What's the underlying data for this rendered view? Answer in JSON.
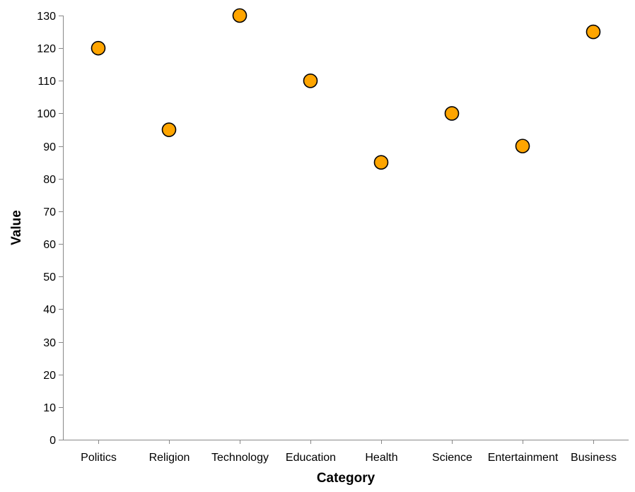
{
  "chart_data": {
    "type": "scatter",
    "title": "",
    "xlabel": "Category",
    "ylabel": "Value",
    "categories": [
      "Politics",
      "Religion",
      "Technology",
      "Education",
      "Health",
      "Science",
      "Entertainment",
      "Business"
    ],
    "values": [
      120,
      95,
      130,
      110,
      85,
      100,
      90,
      125
    ],
    "ylim": [
      0,
      130
    ],
    "yticks": [
      0,
      10,
      20,
      30,
      40,
      50,
      60,
      70,
      80,
      90,
      100,
      110,
      120,
      130
    ],
    "grid": false,
    "legend": "none",
    "colors": {
      "marker_fill": "#FFA500",
      "marker_stroke": "#000000",
      "axis": "#888888",
      "text": "#000000"
    }
  }
}
